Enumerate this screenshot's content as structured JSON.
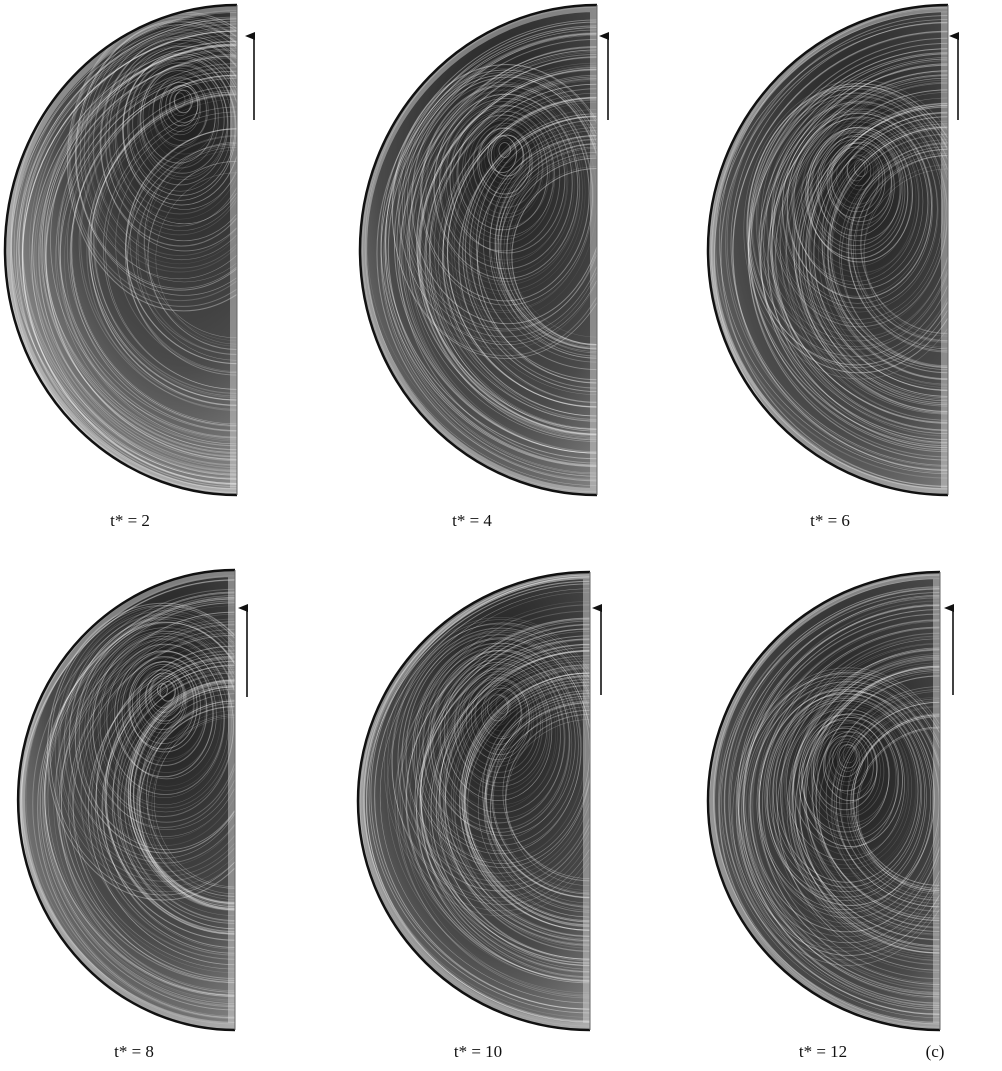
{
  "figure": {
    "panels": [
      {
        "label": "t* = 2"
      },
      {
        "label": "t* = 4"
      },
      {
        "label": "t* = 6"
      },
      {
        "label": "t* = 8"
      },
      {
        "label": "t* = 10"
      },
      {
        "label": "t* = 12"
      }
    ],
    "tag": "(c)"
  }
}
